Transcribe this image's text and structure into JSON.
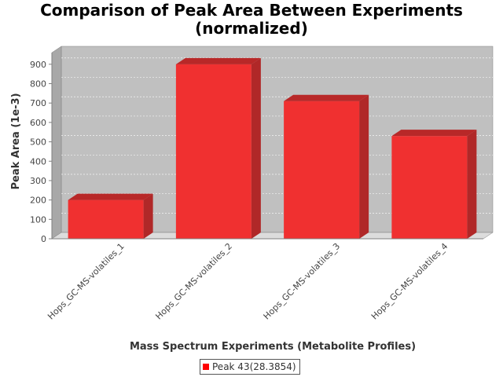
{
  "chart_data": {
    "type": "bar",
    "title_line1": "Comparison of Peak Area Between Experiments",
    "title_line2": "(normalized)",
    "xlabel": "Mass Spectrum Experiments (Metabolite Profiles)",
    "ylabel": "Peak Area (1e-3)",
    "categories": [
      "Hops_GC-MS-volatiles_1",
      "Hops_GC-MS-volatiles_2",
      "Hops_GC-MS-volatiles_3",
      "Hops_GC-MS-volatiles_4"
    ],
    "series": [
      {
        "name": "Peak 43(28.3854)",
        "values": [
          200,
          900,
          710,
          530
        ]
      }
    ],
    "ylim": [
      0,
      960
    ],
    "yticks": [
      0,
      100,
      200,
      300,
      400,
      500,
      600,
      700,
      800,
      900
    ],
    "grid": true,
    "legend_position": "bottom",
    "colors": {
      "bar": "#ff0000",
      "plot_background": "#c0c0c0"
    }
  }
}
